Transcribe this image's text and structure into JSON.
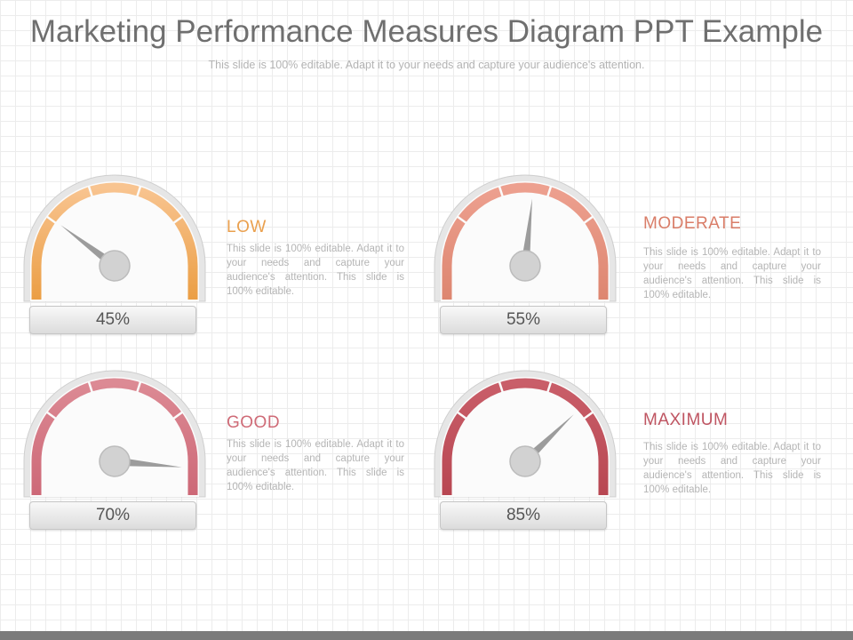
{
  "title": "Marketing Performance Measures Diagram PPT Example",
  "subtitle": "This slide is 100% editable. Adapt it to your needs and capture your audience's attention.",
  "gauges": [
    {
      "heading": "LOW",
      "value": "45%",
      "description": "This slide is 100% editable. Adapt it to your needs and capture your audience's attention. This slide is 100% editable.",
      "heading_color": "#eaa04e",
      "arc_light": "#f8c490",
      "arc_dark": "#eb9e44",
      "needle_angle": 143
    },
    {
      "heading": "MODERATE",
      "value": "55%",
      "description": "This slide is 100% editable. Adapt it to your needs and capture your audience's attention. This slide is 100% editable.",
      "heading_color": "#d97d68",
      "arc_light": "#eda08f",
      "arc_dark": "#dd8670",
      "needle_angle": 84
    },
    {
      "heading": "GOOD",
      "value": "70%",
      "description": "This slide is 100% editable. Adapt it to your needs and capture your audience's attention. This slide is 100% editable.",
      "heading_color": "#cf6b77",
      "arc_light": "#dc8a94",
      "arc_dark": "#cd6877",
      "needle_angle": -5
    },
    {
      "heading": "MAXIMUM",
      "value": "85%",
      "description": "This slide is 100% editable. Adapt it to your needs and capture your audience's attention. This slide is 100% editable.",
      "heading_color": "#bf5562",
      "arc_light": "#c95e69",
      "arc_dark": "#b84752",
      "needle_angle": 44
    }
  ]
}
